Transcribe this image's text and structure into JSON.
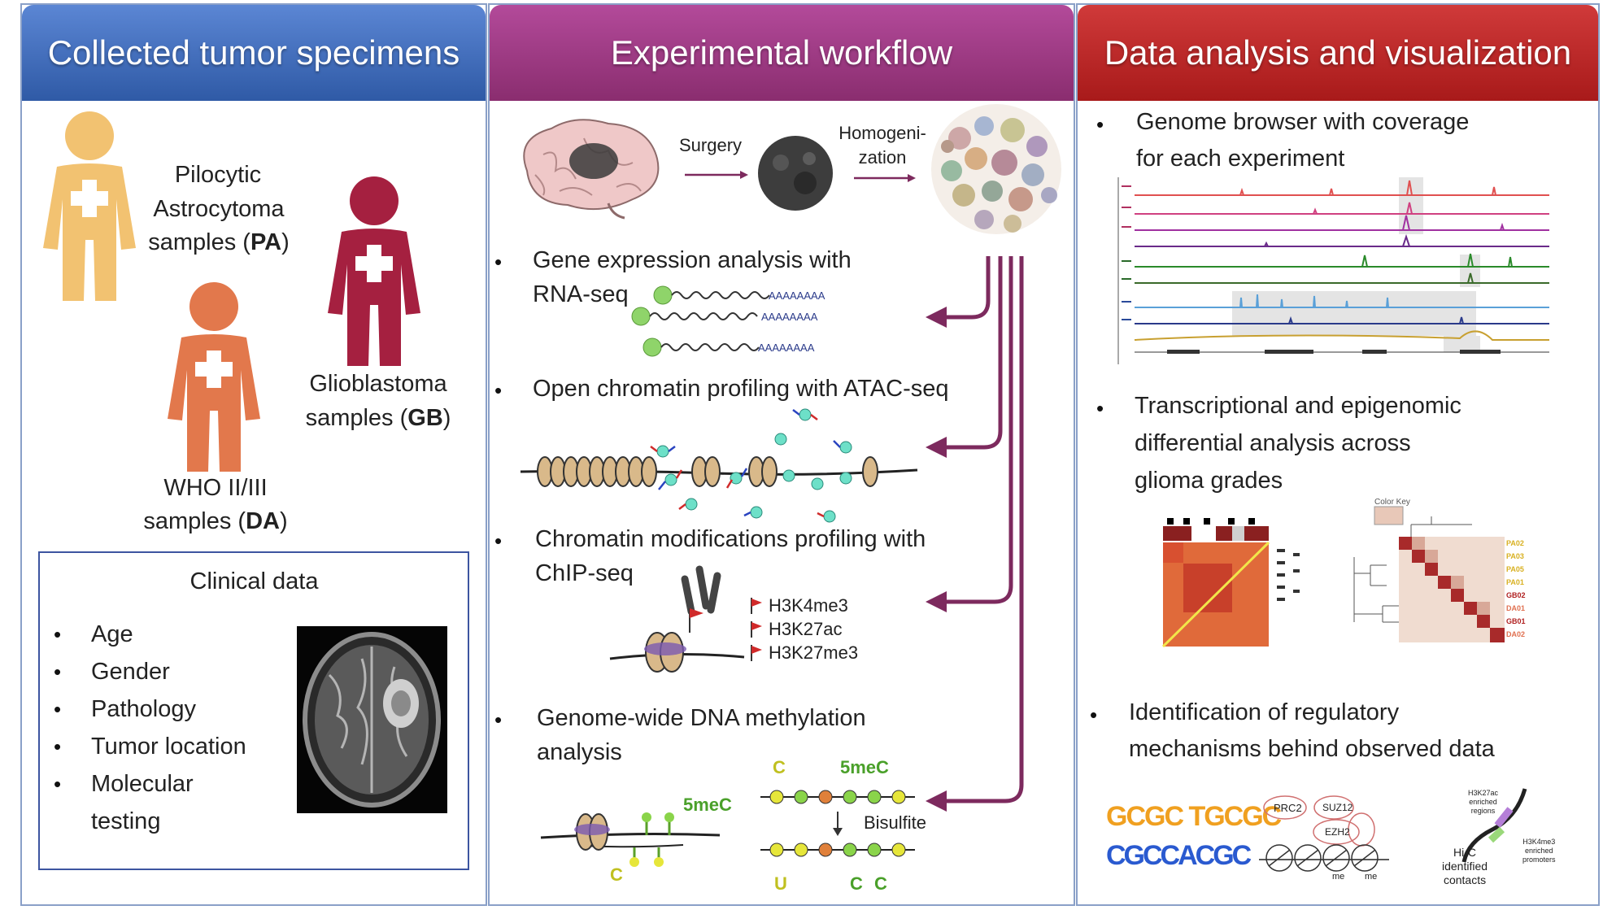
{
  "panels": {
    "specimens": {
      "title": "Collected tumor specimens",
      "pa": {
        "line1": "Pilocytic",
        "line2": "Astrocytoma",
        "line3_pre": "samples (",
        "line3_bold": "PA",
        "line3_post": ")"
      },
      "gb": {
        "line1": "Glioblastoma",
        "line2_pre": "samples (",
        "line2_bold": "GB",
        "line2_post": ")"
      },
      "da": {
        "line1": "WHO II/III",
        "line2_pre": "samples (",
        "line2_bold": "DA",
        "line2_post": ")"
      },
      "clinical": {
        "title": "Clinical data",
        "items": [
          "Age",
          "Gender",
          "Pathology",
          "Tumor location",
          "Molecular",
          "testing"
        ]
      }
    },
    "workflow": {
      "title": "Experimental workflow",
      "surgery": "Surgery",
      "homog_1": "Homogeni-",
      "homog_2": "zation",
      "rna": {
        "line1": "Gene expression analysis with",
        "line2": "RNA-seq",
        "polya": "AAAAAAAA"
      },
      "atac": {
        "line1": "Open chromatin profiling with ATAC-seq"
      },
      "chip": {
        "line1": "Chromatin modifications profiling with",
        "line2": "ChIP-seq",
        "marks": [
          "H3K4me3",
          "H3K27ac",
          "H3K27me3"
        ]
      },
      "meth": {
        "line1": "Genome-wide  DNA methylation",
        "line2": "analysis",
        "label_5mec": "5meC",
        "label_c": "C",
        "label_u": "U",
        "bisulfite": "Bisulfite"
      }
    },
    "analysis": {
      "title": "Data analysis and visualization",
      "item1_line1": "Genome browser with coverage",
      "item1_line2": "for each experiment",
      "item2_line1": "Transcriptional and epigenomic",
      "item2_line2": "differential analysis across",
      "item2_line3": "glioma grades",
      "item3_line1": "Identification of regulatory",
      "item3_line2": "mechanisms behind observed data",
      "heatmap2_labels": [
        "PA02",
        "PA03",
        "PA05",
        "PA01",
        "GB02",
        "DA01",
        "GB01",
        "DA02"
      ],
      "color_key": "Color Key",
      "reg": {
        "prc2": "PRC2",
        "suz12": "SUZ12",
        "ezh2": "EZH2",
        "me": "me",
        "h3k27ac_1": "H3K27ac",
        "h3k27ac_2": "enriched",
        "h3k27ac_3": "regions",
        "h3k4me3_1": "H3K4me3",
        "h3k4me3_2": "enriched",
        "h3k4me3_3": "promoters",
        "hic_1": "Hi-C",
        "hic_2": "identified",
        "hic_3": "contacts",
        "motif1": "GCGC TGCGC",
        "motif2": "CGCCACGC"
      }
    }
  },
  "colors": {
    "pa": "#f2c271",
    "da": "#e2784c",
    "gb": "#a52040",
    "arrow": "#7d2a5e",
    "blue_hdr": "#3a66b4",
    "purple_hdr": "#9b3a85",
    "red_hdr": "#b82424"
  }
}
